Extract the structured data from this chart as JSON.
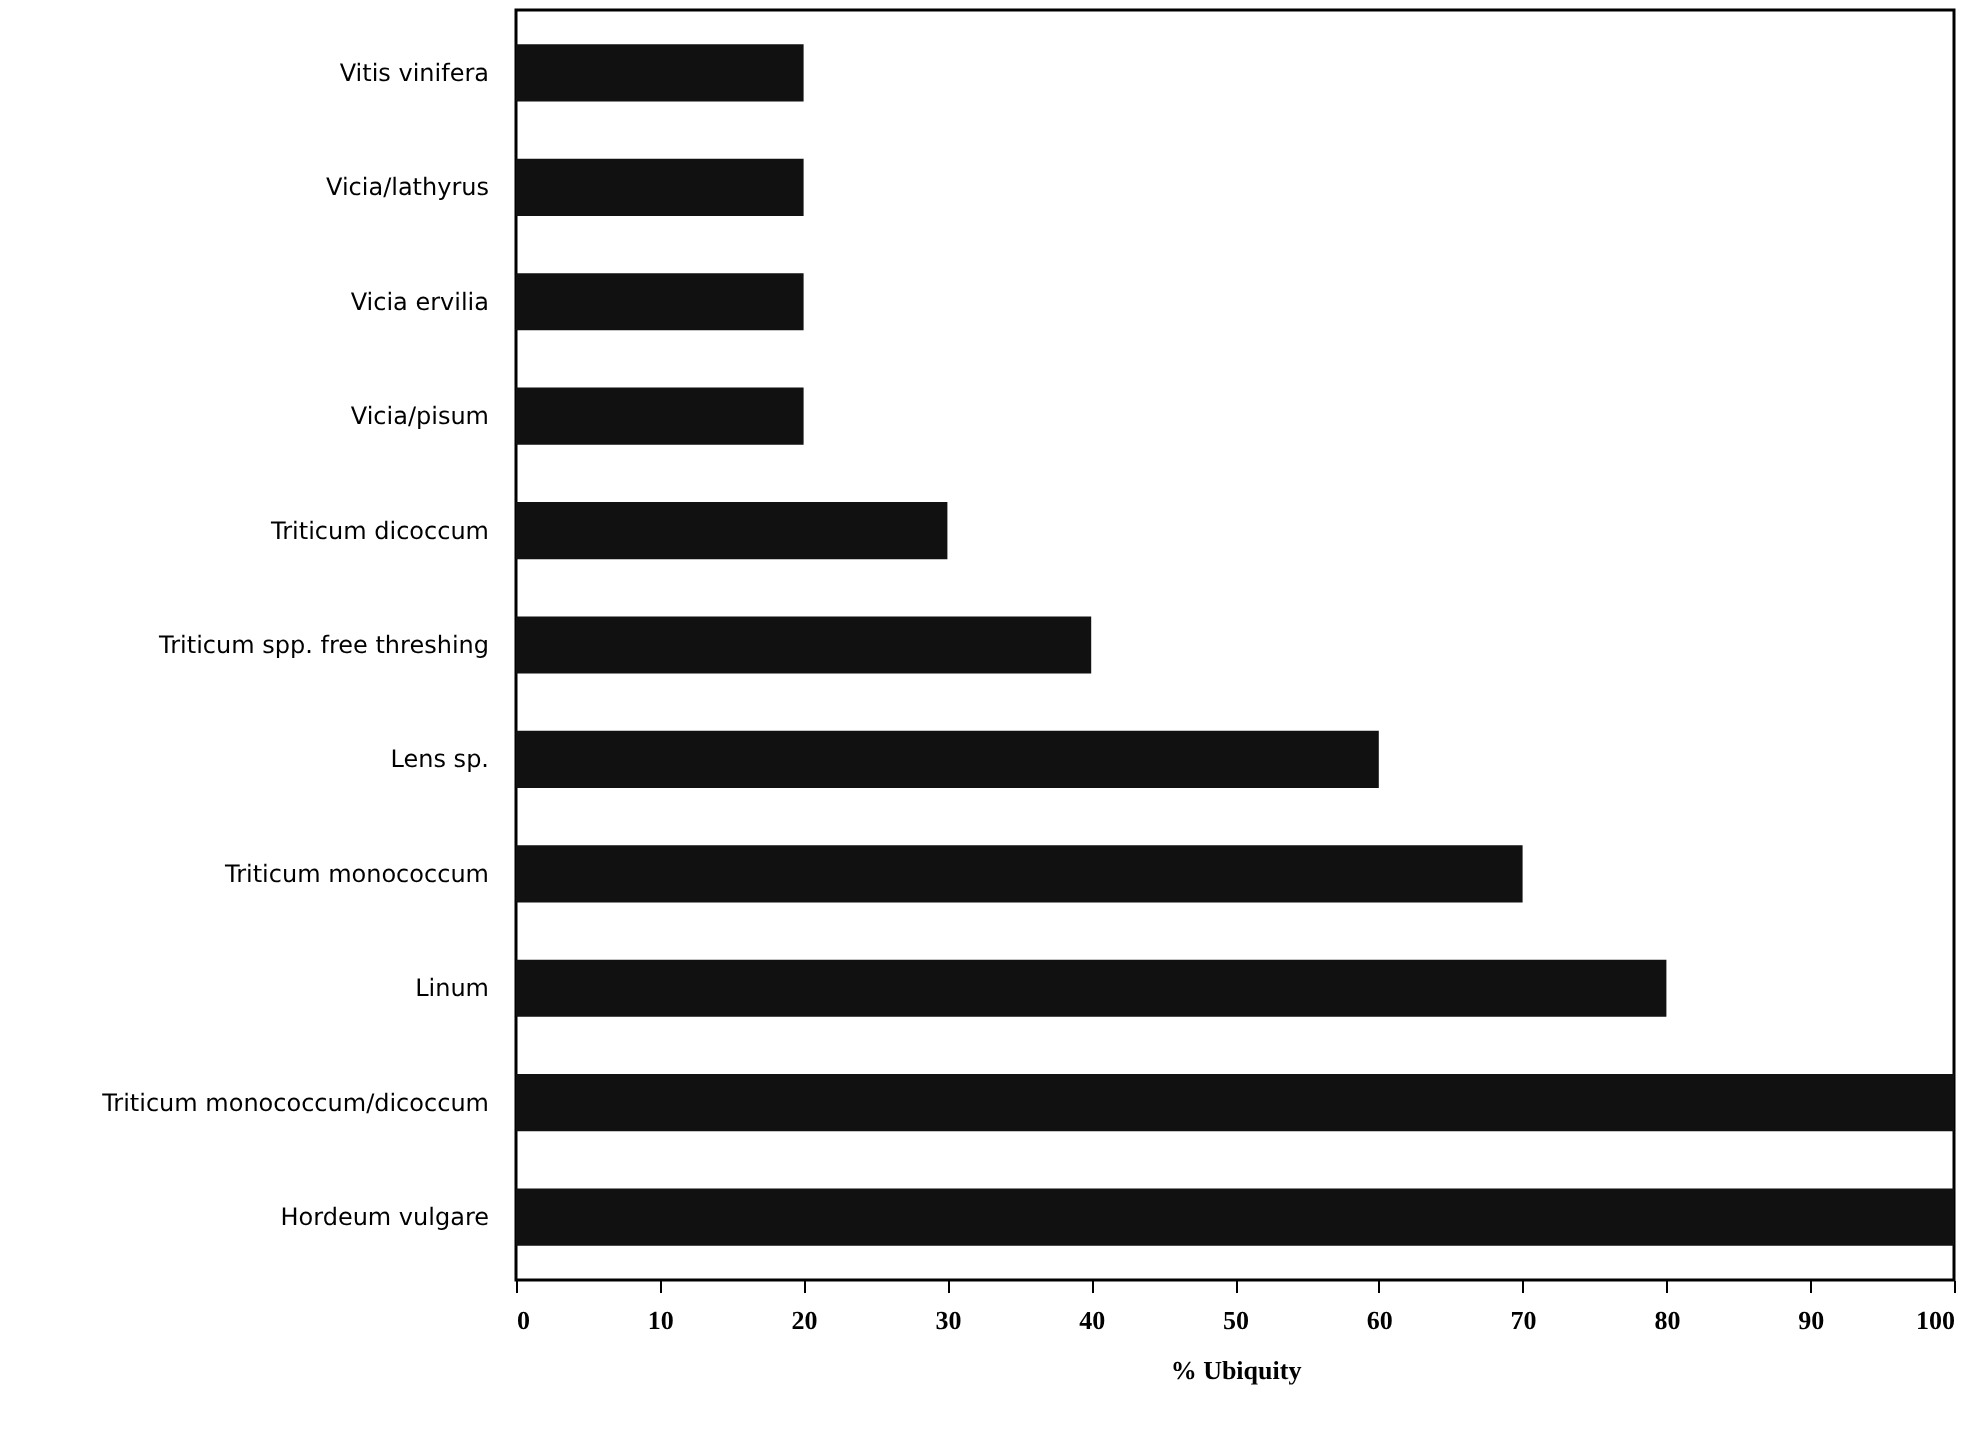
{
  "chart_data": {
    "type": "bar",
    "orientation": "horizontal",
    "xlabel": "% Ubiquity",
    "categories": [
      "Vitis vinifera",
      "Vicia/lathyrus",
      "Vicia ervilia",
      "Vicia/pisum",
      "Triticum dicoccum",
      "Triticum spp. free threshing",
      "Lens sp.",
      "Triticum monococcum",
      "Linum",
      "Triticum monococcum/dicoccum",
      "Hordeum vulgare"
    ],
    "values": [
      20,
      20,
      20,
      20,
      30,
      40,
      60,
      70,
      80,
      100,
      100
    ],
    "color": "#111111",
    "xlim": [
      0,
      100
    ],
    "xticks": [
      0,
      10,
      20,
      30,
      40,
      50,
      60,
      70,
      80,
      90,
      100
    ],
    "grid": false
  }
}
